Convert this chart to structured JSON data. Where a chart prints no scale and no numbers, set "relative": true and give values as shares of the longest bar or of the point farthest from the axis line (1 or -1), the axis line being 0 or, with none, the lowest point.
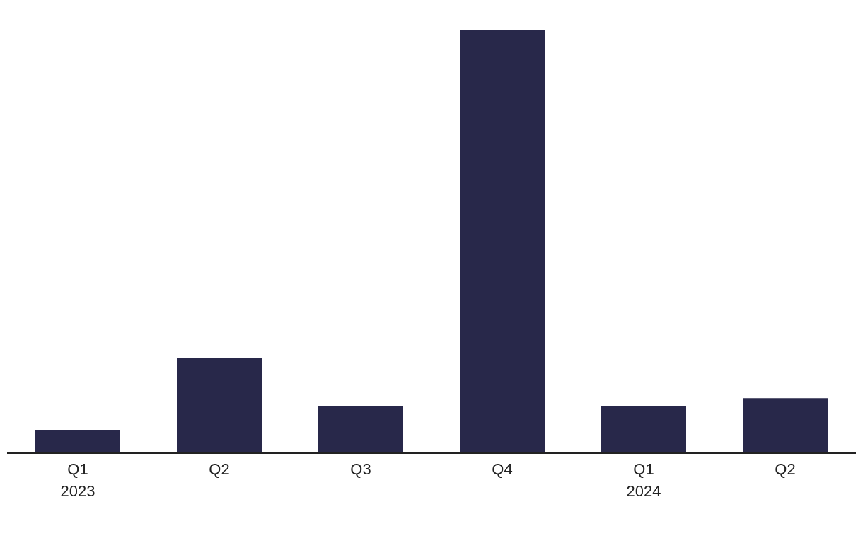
{
  "chart_data": {
    "type": "bar",
    "relative": true,
    "categories": [
      "Q1\n2023",
      "Q2",
      "Q3",
      "Q4",
      "Q1\n2024",
      "Q2"
    ],
    "values": [
      0.055,
      0.225,
      0.112,
      1,
      0.112,
      0.13
    ],
    "color": "#28284a",
    "grid": false,
    "legend": false
  }
}
